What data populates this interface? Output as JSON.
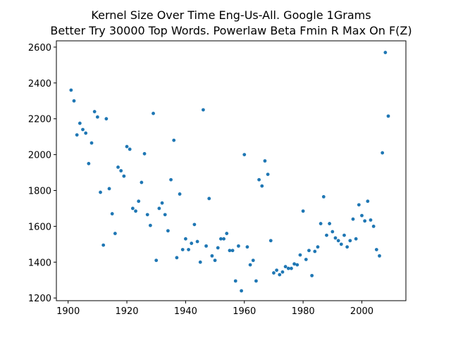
{
  "chart_data": {
    "type": "scatter",
    "title": "Kernel Size Over Time Eng-Us-All. Google 1Grams",
    "subtitle": "Better Try 30000 Top Words. Powerlaw Beta Fmin R Max On F(Z)",
    "xlabel": "",
    "ylabel": "",
    "xlim": [
      1896,
      2015
    ],
    "ylim": [
      1185,
      2635
    ],
    "xticks": [
      1900,
      1920,
      1940,
      1960,
      1980,
      2000
    ],
    "yticks": [
      1200,
      1400,
      1600,
      1800,
      2000,
      2200,
      2400,
      2600
    ],
    "grid": false,
    "marker_color": "#1f77b4",
    "series": [
      {
        "points": [
          [
            1901,
            2360
          ],
          [
            1902,
            2300
          ],
          [
            1903,
            2110
          ],
          [
            1904,
            2175
          ],
          [
            1905,
            2140
          ],
          [
            1906,
            2120
          ],
          [
            1907,
            1950
          ],
          [
            1908,
            2065
          ],
          [
            1909,
            2240
          ],
          [
            1910,
            2210
          ],
          [
            1911,
            1790
          ],
          [
            1912,
            1495
          ],
          [
            1913,
            2200
          ],
          [
            1914,
            1810
          ],
          [
            1915,
            1670
          ],
          [
            1916,
            1560
          ],
          [
            1917,
            1930
          ],
          [
            1918,
            1910
          ],
          [
            1919,
            1880
          ],
          [
            1920,
            2045
          ],
          [
            1921,
            2030
          ],
          [
            1922,
            1700
          ],
          [
            1923,
            1685
          ],
          [
            1924,
            1740
          ],
          [
            1925,
            1845
          ],
          [
            1926,
            2005
          ],
          [
            1927,
            1665
          ],
          [
            1928,
            1605
          ],
          [
            1929,
            2230
          ],
          [
            1930,
            1410
          ],
          [
            1931,
            1700
          ],
          [
            1932,
            1730
          ],
          [
            1933,
            1665
          ],
          [
            1934,
            1575
          ],
          [
            1935,
            1860
          ],
          [
            1936,
            2080
          ],
          [
            1937,
            1425
          ],
          [
            1938,
            1780
          ],
          [
            1939,
            1470
          ],
          [
            1940,
            1530
          ],
          [
            1941,
            1470
          ],
          [
            1942,
            1505
          ],
          [
            1943,
            1610
          ],
          [
            1944,
            1515
          ],
          [
            1945,
            1400
          ],
          [
            1946,
            2250
          ],
          [
            1947,
            1490
          ],
          [
            1948,
            1755
          ],
          [
            1949,
            1435
          ],
          [
            1950,
            1410
          ],
          [
            1951,
            1480
          ],
          [
            1952,
            1530
          ],
          [
            1953,
            1530
          ],
          [
            1954,
            1560
          ],
          [
            1955,
            1465
          ],
          [
            1956,
            1465
          ],
          [
            1957,
            1295
          ],
          [
            1958,
            1490
          ],
          [
            1959,
            1240
          ],
          [
            1960,
            2000
          ],
          [
            1961,
            1485
          ],
          [
            1962,
            1385
          ],
          [
            1963,
            1410
          ],
          [
            1964,
            1295
          ],
          [
            1965,
            1860
          ],
          [
            1966,
            1825
          ],
          [
            1967,
            1965
          ],
          [
            1968,
            1890
          ],
          [
            1969,
            1520
          ],
          [
            1970,
            1340
          ],
          [
            1971,
            1355
          ],
          [
            1972,
            1330
          ],
          [
            1973,
            1345
          ],
          [
            1974,
            1375
          ],
          [
            1975,
            1365
          ],
          [
            1976,
            1365
          ],
          [
            1977,
            1390
          ],
          [
            1978,
            1385
          ],
          [
            1979,
            1440
          ],
          [
            1980,
            1685
          ],
          [
            1981,
            1415
          ],
          [
            1982,
            1465
          ],
          [
            1983,
            1325
          ],
          [
            1984,
            1460
          ],
          [
            1985,
            1485
          ],
          [
            1986,
            1615
          ],
          [
            1987,
            1765
          ],
          [
            1988,
            1550
          ],
          [
            1989,
            1615
          ],
          [
            1990,
            1570
          ],
          [
            1991,
            1535
          ],
          [
            1992,
            1520
          ],
          [
            1993,
            1500
          ],
          [
            1994,
            1550
          ],
          [
            1995,
            1485
          ],
          [
            1996,
            1520
          ],
          [
            1997,
            1640
          ],
          [
            1998,
            1530
          ],
          [
            1999,
            1720
          ],
          [
            2000,
            1660
          ],
          [
            2001,
            1630
          ],
          [
            2002,
            1740
          ],
          [
            2003,
            1635
          ],
          [
            2004,
            1600
          ],
          [
            2005,
            1470
          ],
          [
            2006,
            1435
          ],
          [
            2007,
            2010
          ],
          [
            2008,
            2570
          ],
          [
            2009,
            2215
          ]
        ]
      }
    ]
  }
}
